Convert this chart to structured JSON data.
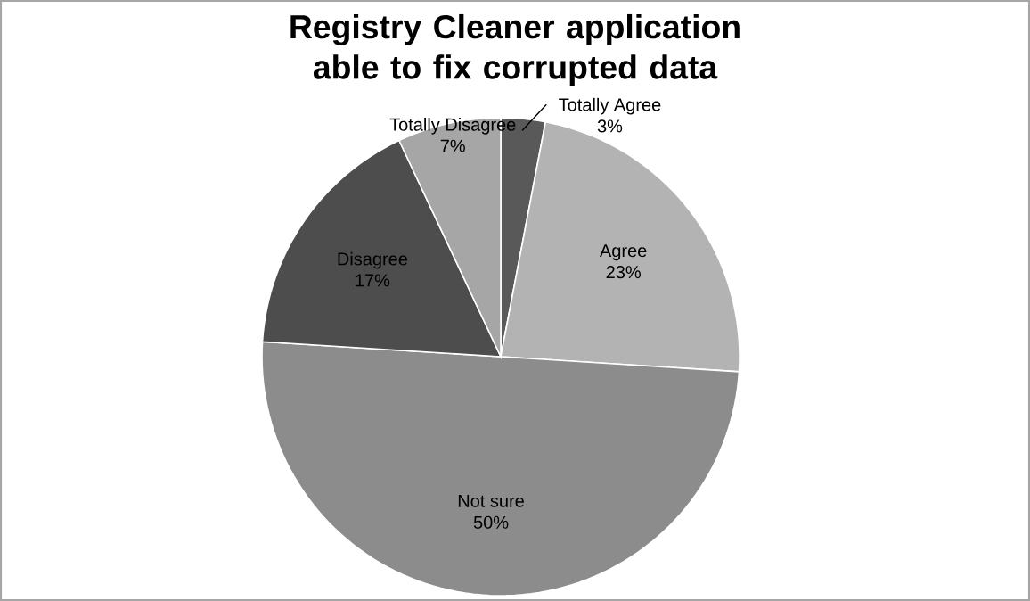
{
  "chart_data": {
    "type": "pie",
    "title": "Registry Cleaner application able to fix corrupted data",
    "categories": [
      "Totally Agree",
      "Agree",
      "Not sure",
      "Disagree",
      "Totally Disagree"
    ],
    "values": [
      3,
      23,
      50,
      17,
      7
    ],
    "value_labels": [
      "3%",
      "23%",
      "50%",
      "17%",
      "7%"
    ],
    "colors": [
      "#595959",
      "#b3b3b3",
      "#8c8c8c",
      "#4d4d4d",
      "#a6a6a6"
    ],
    "data_labels": true
  }
}
